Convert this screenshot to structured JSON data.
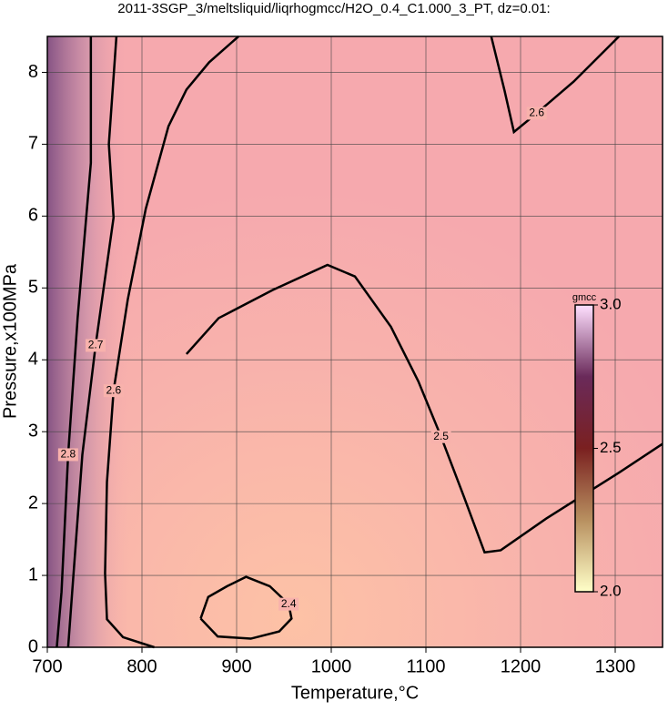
{
  "chart_data": {
    "type": "contour",
    "title": "2011-3SGP_3/meltsliquid/liqrhogmcc/H2O_0.4_C1.000_3_PT, dz=0.01:",
    "x_label": "Temperature,°C",
    "y_label": "Pressure,x100MPa",
    "xlim": [
      700,
      1350
    ],
    "ylim": [
      0,
      8.5
    ],
    "xticks": [
      700,
      800,
      900,
      1000,
      1100,
      1200,
      1300
    ],
    "yticks": [
      0,
      1,
      2,
      3,
      4,
      5,
      6,
      7,
      8
    ],
    "grid": true,
    "contours": [
      {
        "level": 2.4,
        "color": "#000000",
        "x": [
          862,
          870,
          890,
          910,
          935,
          955,
          958,
          945,
          915,
          880,
          862
        ],
        "y": [
          0.4,
          0.7,
          0.85,
          0.98,
          0.85,
          0.6,
          0.4,
          0.22,
          0.12,
          0.15,
          0.4
        ]
      },
      {
        "level": 2.5,
        "color": "#000000",
        "x": [
          847,
          881,
          938,
          996,
          1025,
          1063,
          1092,
          1116,
          1140,
          1162,
          1179,
          1227,
          1304,
          1350
        ],
        "y": [
          4.08,
          4.58,
          4.97,
          5.32,
          5.16,
          4.46,
          3.7,
          2.93,
          2.1,
          1.32,
          1.35,
          1.79,
          2.43,
          2.83
        ]
      },
      {
        "level": 2.6,
        "color": "#000000",
        "x": [
          902,
          871,
          847,
          828,
          804,
          785,
          770,
          763,
          761,
          763,
          780,
          813
        ],
        "y": [
          8.5,
          8.14,
          7.76,
          7.25,
          6.1,
          4.84,
          3.57,
          2.3,
          1.03,
          0.39,
          0.14,
          0
        ]
      },
      {
        "level": 2.6,
        "color": "#000000",
        "x": [
          1169,
          1183,
          1193,
          1217,
          1256,
          1304
        ],
        "y": [
          8.5,
          7.75,
          7.17,
          7.43,
          7.87,
          8.5
        ]
      },
      {
        "level": 2.7,
        "color": "#000000",
        "x": [
          773,
          765,
          770,
          751,
          737,
          727,
          722
        ],
        "y": [
          8.5,
          7.0,
          5.98,
          4.2,
          2.68,
          0.9,
          0
        ]
      },
      {
        "level": 2.8,
        "color": "#000000",
        "x": [
          746,
          746,
          732,
          722,
          715,
          710
        ],
        "y": [
          8.5,
          6.74,
          4.58,
          2.68,
          0.77,
          0
        ]
      }
    ],
    "colorbar": {
      "label": "gmcc",
      "lim": [
        2,
        3
      ],
      "ticks": [
        {
          "value": 2,
          "label": "2.0"
        },
        2.5,
        {
          "value": 3,
          "label": "3.0"
        }
      ],
      "colors": [
        "#ffffc8",
        "#b89060",
        "#7a2020",
        "#6a2a5a",
        "#ffe0ff"
      ]
    }
  }
}
